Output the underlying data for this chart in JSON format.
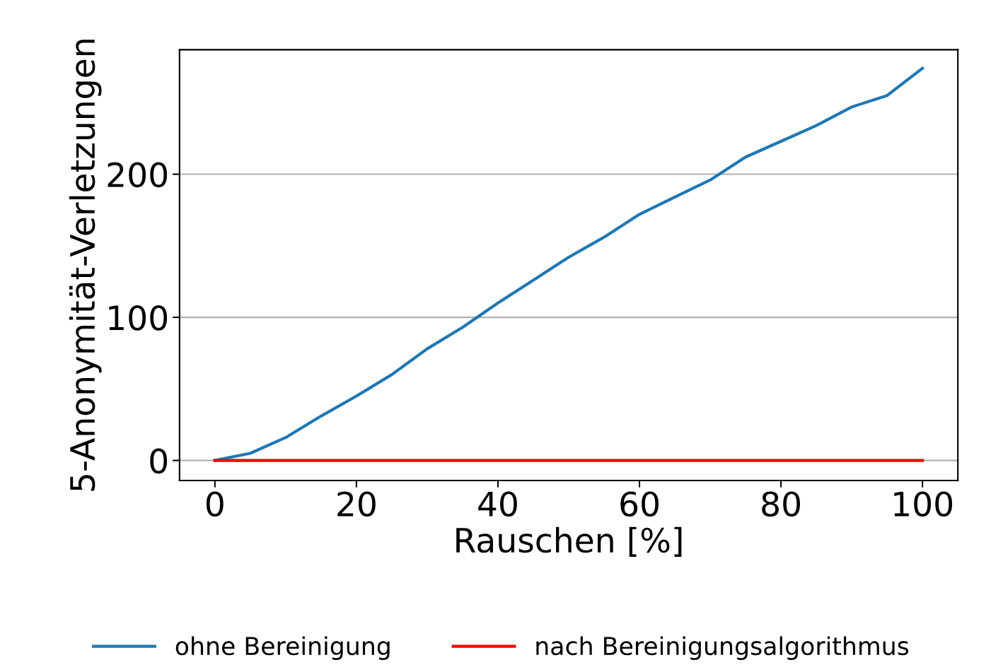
{
  "chart_data": {
    "type": "line",
    "xlabel": "Rauschen [%]",
    "ylabel": "5-Anonymität-Verletzungen",
    "x": [
      0,
      5,
      10,
      15,
      20,
      25,
      30,
      35,
      40,
      45,
      50,
      55,
      60,
      65,
      70,
      75,
      80,
      85,
      90,
      95,
      100
    ],
    "series": [
      {
        "name": "ohne Bereinigung",
        "color": "#1f77b4",
        "values": [
          0,
          5,
          16,
          31,
          45,
          60,
          78,
          93,
          110,
          126,
          142,
          156,
          172,
          184,
          196,
          212,
          223,
          234,
          247,
          255,
          274
        ]
      },
      {
        "name": "nach Bereinigungsalgorithmus",
        "color": "#ff0000",
        "values": [
          0,
          0,
          0,
          0,
          0,
          0,
          0,
          0,
          0,
          0,
          0,
          0,
          0,
          0,
          0,
          0,
          0,
          0,
          0,
          0,
          0
        ]
      }
    ],
    "xlim": [
      -5,
      105
    ],
    "ylim": [
      -14,
      287
    ],
    "xticks": [
      0,
      20,
      40,
      60,
      80,
      100
    ],
    "yticks": [
      0,
      100,
      200
    ],
    "grid": "y",
    "legend": "bottom",
    "marker": "none",
    "line_style": "solid"
  }
}
